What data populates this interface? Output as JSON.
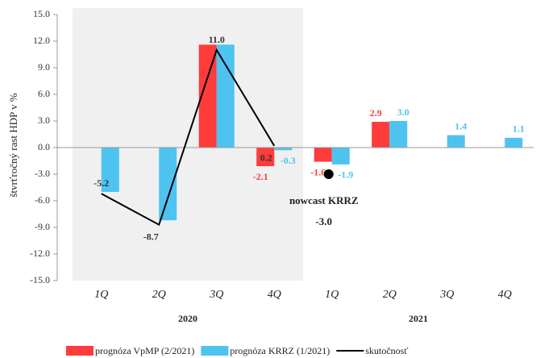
{
  "chart_data": {
    "type": "bar",
    "y_label": "štvrťročný rast HDP v %",
    "categories": [
      "1Q",
      "2Q",
      "3Q",
      "4Q",
      "1Q",
      "2Q",
      "3Q",
      "4Q"
    ],
    "groups": [
      {
        "label": "2020",
        "span": 4
      },
      {
        "label": "2021",
        "span": 4
      }
    ],
    "ylim": [
      -15,
      15
    ],
    "yticks": [
      {
        "value": 15,
        "label": "15.0"
      },
      {
        "value": 12,
        "label": "12.0"
      },
      {
        "value": 9,
        "label": "9.0"
      },
      {
        "value": 6,
        "label": "6.0"
      },
      {
        "value": 3,
        "label": "3.0"
      },
      {
        "value": 0,
        "label": "0.0"
      },
      {
        "value": -3,
        "label": "-3.0"
      },
      {
        "value": -6,
        "label": "-6.0"
      },
      {
        "value": -9,
        "label": "-9.0"
      },
      {
        "value": -12,
        "label": "-12.0"
      },
      {
        "value": -15,
        "label": "-15.0"
      }
    ],
    "series": [
      {
        "name": "prognóza VpMP (2/2021)",
        "kind": "bar",
        "color": "#ff3b3b",
        "values": [
          null,
          null,
          11.6,
          -2.1,
          -1.6,
          2.9,
          null,
          null
        ],
        "value_labels": [
          null,
          null,
          null,
          "-2.1",
          "-1.6",
          "2.9",
          null,
          null
        ]
      },
      {
        "name": "prognóza KRRZ (1/2021)",
        "kind": "bar",
        "color": "#4ec3f0",
        "values": [
          -5.0,
          -8.2,
          11.6,
          -0.3,
          -1.9,
          3.0,
          1.4,
          1.1
        ],
        "value_labels": [
          null,
          null,
          null,
          "-0.3",
          "-1.9",
          "3.0",
          "1.4",
          "1.1"
        ]
      },
      {
        "name": "skutočnosť",
        "kind": "line",
        "color": "#000000",
        "values": [
          -5.2,
          -8.7,
          11.0,
          0.2,
          null,
          null,
          null,
          null
        ],
        "value_labels": [
          "-5.2",
          "-8.7",
          "11.0",
          "0.2",
          null,
          null,
          null,
          null
        ]
      }
    ],
    "nowcast": {
      "label": "nowcast KRRZ",
      "values": [
        null,
        null,
        null,
        null,
        -3.0,
        null,
        null,
        null
      ],
      "value_labels": [
        null,
        null,
        null,
        null,
        "-3.0",
        null,
        null,
        null
      ]
    }
  }
}
